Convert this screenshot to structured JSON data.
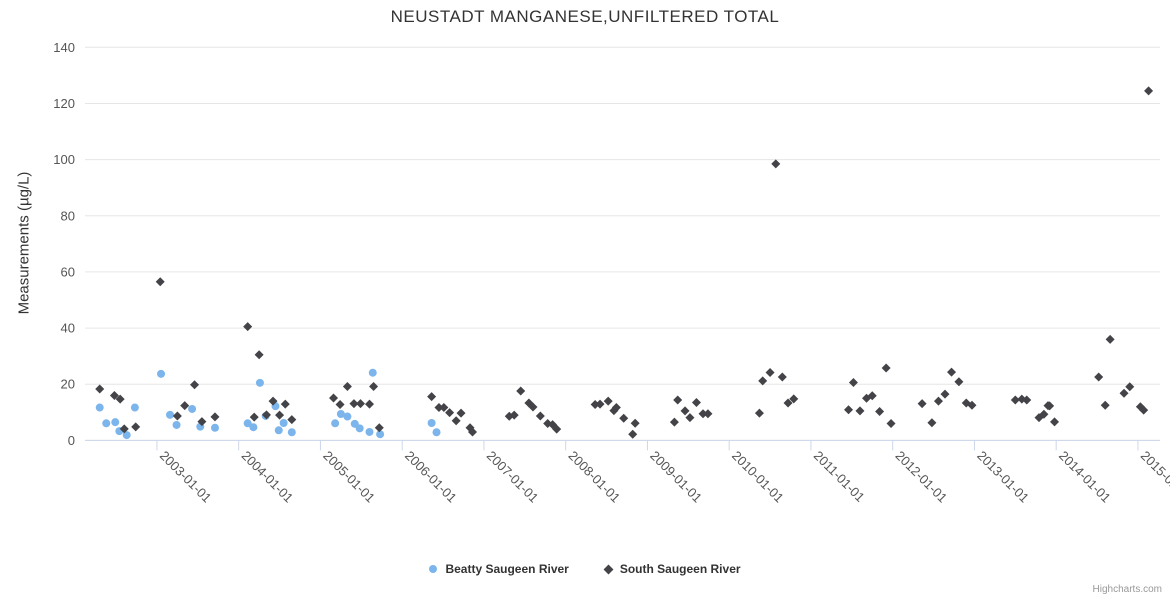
{
  "title": "NEUSTADT MANGANESE,UNFILTERED TOTAL",
  "credits": "Highcharts.com",
  "colors": {
    "beatty": "#7cb5ec",
    "south": "#434348",
    "grid": "#e6e6e6",
    "axis_line": "#ccd6eb",
    "title_text": "#333333",
    "axis_label_text": "#555555",
    "credits_text": "#999999"
  },
  "chart_data": {
    "type": "scatter",
    "title": "NEUSTADT MANGANESE,UNFILTERED TOTAL",
    "xlabel": "",
    "ylabel": "Measurements (µg/L)",
    "ylim": [
      0,
      140
    ],
    "y_ticks": [
      0,
      20,
      40,
      60,
      80,
      100,
      120,
      140
    ],
    "y_tick_labels": [
      "0",
      "20",
      "40",
      "60",
      "80",
      "100",
      "120",
      "140"
    ],
    "x_range_years": [
      2002.12,
      2015.27
    ],
    "x_ticks": [
      2003,
      2004,
      2005,
      2006,
      2007,
      2008,
      2009,
      2010,
      2011,
      2012,
      2013,
      2014,
      2015
    ],
    "x_tick_labels": [
      "2003-01-01",
      "2004-01-01",
      "2005-01-01",
      "2006-01-01",
      "2007-01-01",
      "2008-01-01",
      "2009-01-01",
      "2010-01-01",
      "2011-01-01",
      "2012-01-01",
      "2013-01-01",
      "2014-01-01",
      "2015-01-01"
    ],
    "grid": "horizontal-only",
    "legend_position": "bottom-center",
    "series": [
      {
        "name": "Beatty Saugeen River",
        "marker": "circle",
        "color": "#7cb5ec",
        "points": [
          [
            2002.3,
            11.7
          ],
          [
            2002.38,
            6.1
          ],
          [
            2002.49,
            6.5
          ],
          [
            2002.54,
            3.3
          ],
          [
            2002.63,
            1.9
          ],
          [
            2002.73,
            11.7
          ],
          [
            2003.05,
            23.7
          ],
          [
            2003.16,
            9.1
          ],
          [
            2003.24,
            5.5
          ],
          [
            2003.43,
            11.2
          ],
          [
            2003.53,
            4.9
          ],
          [
            2003.71,
            4.5
          ],
          [
            2004.11,
            6.1
          ],
          [
            2004.18,
            4.7
          ],
          [
            2004.26,
            20.5
          ],
          [
            2004.33,
            8.7
          ],
          [
            2004.45,
            12.2
          ],
          [
            2004.49,
            3.6
          ],
          [
            2004.55,
            6.2
          ],
          [
            2004.65,
            2.9
          ],
          [
            2005.18,
            6.1
          ],
          [
            2005.25,
            9.4
          ],
          [
            2005.33,
            8.5
          ],
          [
            2005.42,
            5.9
          ],
          [
            2005.48,
            4.3
          ],
          [
            2005.6,
            3.0
          ],
          [
            2005.64,
            24.1
          ],
          [
            2005.73,
            2.2
          ],
          [
            2006.36,
            6.2
          ],
          [
            2006.42,
            2.9
          ]
        ]
      },
      {
        "name": "South Saugeen River",
        "marker": "diamond",
        "color": "#434348",
        "points": [
          [
            2002.3,
            18.3
          ],
          [
            2002.48,
            16.0
          ],
          [
            2002.55,
            14.7
          ],
          [
            2002.6,
            4.1
          ],
          [
            2002.74,
            4.8
          ],
          [
            2003.04,
            56.5
          ],
          [
            2003.25,
            8.7
          ],
          [
            2003.34,
            12.4
          ],
          [
            2003.46,
            19.8
          ],
          [
            2003.55,
            6.7
          ],
          [
            2003.71,
            8.4
          ],
          [
            2004.11,
            40.5
          ],
          [
            2004.19,
            8.3
          ],
          [
            2004.25,
            30.5
          ],
          [
            2004.34,
            9.1
          ],
          [
            2004.42,
            14.0
          ],
          [
            2004.5,
            9.0
          ],
          [
            2004.57,
            12.9
          ],
          [
            2004.65,
            7.4
          ],
          [
            2005.16,
            15.1
          ],
          [
            2005.24,
            12.8
          ],
          [
            2005.33,
            19.2
          ],
          [
            2005.41,
            13.1
          ],
          [
            2005.49,
            13.1
          ],
          [
            2005.6,
            12.9
          ],
          [
            2005.65,
            19.2
          ],
          [
            2005.72,
            4.5
          ],
          [
            2006.36,
            15.6
          ],
          [
            2006.45,
            11.7
          ],
          [
            2006.51,
            11.7
          ],
          [
            2006.58,
            9.9
          ],
          [
            2006.66,
            7.0
          ],
          [
            2006.72,
            9.7
          ],
          [
            2006.83,
            4.5
          ],
          [
            2006.86,
            3.0
          ],
          [
            2007.31,
            8.6
          ],
          [
            2007.37,
            9.0
          ],
          [
            2007.45,
            17.6
          ],
          [
            2007.55,
            13.3
          ],
          [
            2007.6,
            11.9
          ],
          [
            2007.69,
            8.7
          ],
          [
            2007.78,
            6.0
          ],
          [
            2007.84,
            5.6
          ],
          [
            2007.89,
            4.0
          ],
          [
            2008.36,
            12.8
          ],
          [
            2008.42,
            12.9
          ],
          [
            2008.52,
            14.0
          ],
          [
            2008.59,
            10.6
          ],
          [
            2008.62,
            11.7
          ],
          [
            2008.71,
            7.9
          ],
          [
            2008.82,
            2.2
          ],
          [
            2008.85,
            6.1
          ],
          [
            2009.33,
            6.5
          ],
          [
            2009.37,
            14.4
          ],
          [
            2009.46,
            10.5
          ],
          [
            2009.52,
            8.1
          ],
          [
            2009.6,
            13.5
          ],
          [
            2009.68,
            9.5
          ],
          [
            2009.74,
            9.5
          ],
          [
            2010.37,
            9.7
          ],
          [
            2010.41,
            21.2
          ],
          [
            2010.5,
            24.2
          ],
          [
            2010.57,
            98.5
          ],
          [
            2010.65,
            22.6
          ],
          [
            2010.72,
            13.3
          ],
          [
            2010.79,
            14.8
          ],
          [
            2011.46,
            10.9
          ],
          [
            2011.52,
            20.6
          ],
          [
            2011.6,
            10.5
          ],
          [
            2011.68,
            15.0
          ],
          [
            2011.75,
            15.9
          ],
          [
            2011.84,
            10.3
          ],
          [
            2011.92,
            25.8
          ],
          [
            2011.98,
            6.0
          ],
          [
            2012.36,
            13.1
          ],
          [
            2012.48,
            6.3
          ],
          [
            2012.56,
            14.0
          ],
          [
            2012.64,
            16.5
          ],
          [
            2012.72,
            24.3
          ],
          [
            2012.81,
            20.9
          ],
          [
            2012.9,
            13.3
          ],
          [
            2012.97,
            12.5
          ],
          [
            2013.5,
            14.4
          ],
          [
            2013.58,
            14.7
          ],
          [
            2013.64,
            14.4
          ],
          [
            2013.79,
            8.1
          ],
          [
            2013.85,
            9.3
          ],
          [
            2013.9,
            12.4
          ],
          [
            2013.92,
            12.3
          ],
          [
            2013.98,
            6.6
          ],
          [
            2014.52,
            22.6
          ],
          [
            2014.6,
            12.5
          ],
          [
            2014.66,
            36.0
          ],
          [
            2014.83,
            16.8
          ],
          [
            2014.9,
            19.1
          ],
          [
            2015.03,
            12.0
          ],
          [
            2015.07,
            10.8
          ],
          [
            2015.13,
            124.5
          ]
        ]
      }
    ]
  }
}
